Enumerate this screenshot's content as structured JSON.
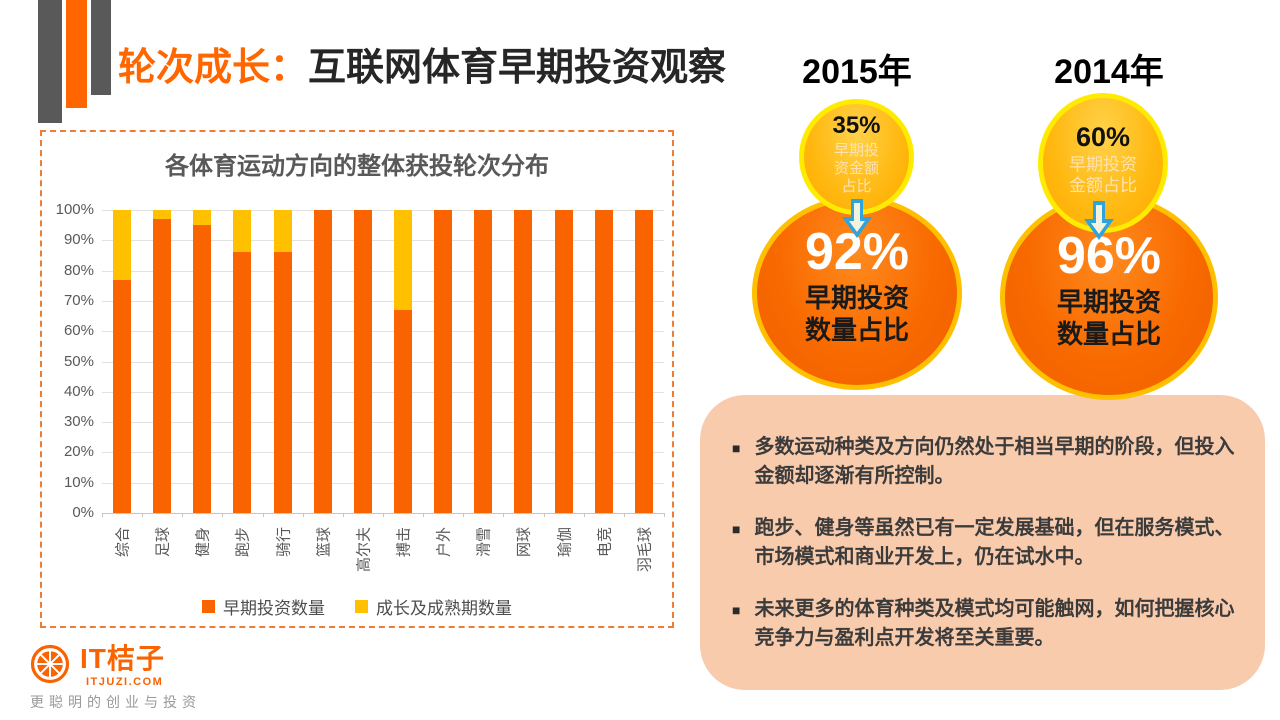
{
  "header": {
    "title_highlight": "轮次成长：",
    "title_rest": "互联网体育早期投资观察",
    "accent_color": "#FF6600"
  },
  "chart_data": {
    "type": "bar",
    "stacked": true,
    "title": "各体育运动方向的整体获投轮次分布",
    "categories": [
      "综合",
      "足球",
      "健身",
      "跑步",
      "骑行",
      "篮球",
      "高尔夫",
      "搏击",
      "户外",
      "滑雪",
      "网球",
      "瑜伽",
      "电竞",
      "羽毛球"
    ],
    "series": [
      {
        "name": "早期投资数量",
        "color": "#FA6400",
        "values": [
          77,
          97,
          95,
          86,
          86,
          100,
          100,
          67,
          100,
          100,
          100,
          100,
          100,
          100
        ]
      },
      {
        "name": "成长及成熟期数量",
        "color": "#FFC000",
        "values": [
          23,
          3,
          5,
          14,
          14,
          0,
          0,
          33,
          0,
          0,
          0,
          0,
          0,
          0
        ]
      }
    ],
    "xlabel": "",
    "ylabel": "",
    "ylim": [
      0,
      100
    ],
    "y_tick_step": 10,
    "y_tick_suffix": "%",
    "grid": true,
    "legend_position": "bottom"
  },
  "years": [
    {
      "label": "2015年",
      "small": {
        "pct": "35%",
        "caption": "早期投\n资金额\n占比"
      },
      "big": {
        "pct": "92%",
        "caption": "早期投资\n数量占比"
      }
    },
    {
      "label": "2014年",
      "small": {
        "pct": "60%",
        "caption": "早期投资\n金额占比"
      },
      "big": {
        "pct": "96%",
        "caption": "早期投资\n数量占比"
      }
    }
  ],
  "insights": {
    "bullets": [
      "多数运动种类及方向仍然处于相当早期的阶段，但投入金额却逐渐有所控制。",
      "跑步、健身等虽然已有一定发展基础，但在服务模式、市场模式和商业开发上，仍在试水中。",
      "未来更多的体育种类及模式均可能触网，如何把握核心竞争力与盈利点开发将至关重要。"
    ]
  },
  "footer": {
    "logo_text": "IT桔子",
    "logo_domain": "ITJUZI.COM",
    "tagline": "更聪明的创业与投资"
  }
}
